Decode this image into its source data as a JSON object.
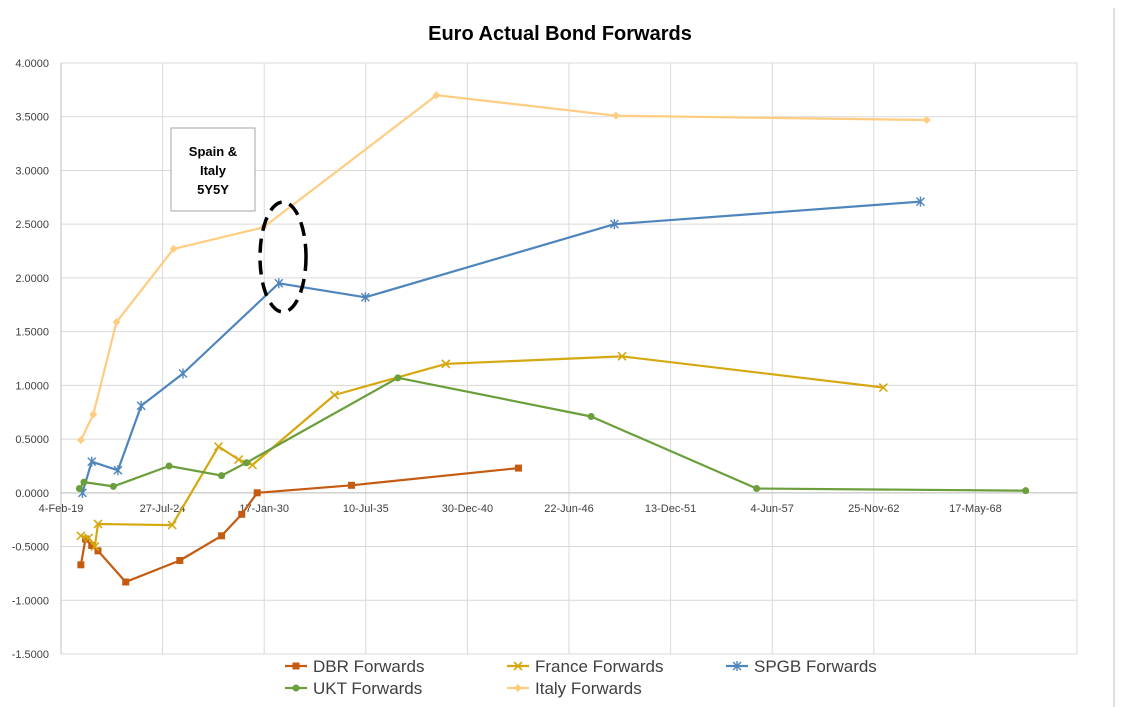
{
  "chart_data": {
    "type": "line",
    "title": "Euro Actual Bond Forwards",
    "xlabel": "",
    "ylabel": "",
    "x_tick_labels": [
      "4-Feb-19",
      "27-Jul-24",
      "17-Jan-30",
      "10-Jul-35",
      "30-Dec-40",
      "22-Jun-46",
      "13-Dec-51",
      "4-Jun-57",
      "25-Nov-62",
      "17-May-68"
    ],
    "x_ticks": [
      "2019-02-04",
      "2024-07-27",
      "2030-01-17",
      "2035-07-10",
      "2040-12-30",
      "2046-06-22",
      "2051-12-13",
      "2057-06-04",
      "2062-11-25",
      "2068-05-17"
    ],
    "xlim": [
      "2019-02-04",
      "2073-11-07"
    ],
    "ylim": [
      -1.5,
      4.0
    ],
    "y_ticks": [
      -1.5,
      -1.0,
      -0.5,
      0.0,
      0.5,
      1.0,
      1.5,
      2.0,
      2.5,
      3.0,
      3.5,
      4.0
    ],
    "y_tick_labels": [
      "-1.5000",
      "-1.0000",
      "-0.5000",
      "0.0000",
      "0.5000",
      "1.0000",
      "1.5000",
      "2.0000",
      "2.5000",
      "3.0000",
      "3.5000",
      "4.0000"
    ],
    "grid": true,
    "legend_position": "bottom",
    "series": [
      {
        "name": "DBR Forwards",
        "color": "#C55A11",
        "marker": "square",
        "x": [
          "2020-03-01",
          "2020-06-01",
          "2020-10-01",
          "2021-02-01",
          "2022-08-01",
          "2025-07-01",
          "2027-10-01",
          "2028-11-01",
          "2029-09-01",
          "2034-10-01",
          "2043-10-01"
        ],
        "y": [
          -0.67,
          -0.43,
          -0.49,
          -0.54,
          -0.83,
          -0.63,
          -0.4,
          -0.2,
          0.0,
          0.07,
          0.23
        ]
      },
      {
        "name": "France Forwards",
        "color": "#D6A80F",
        "marker": "x",
        "x": [
          "2020-03-01",
          "2020-08-01",
          "2020-12-01",
          "2021-02-01",
          "2025-02-01",
          "2027-08-01",
          "2028-09-01",
          "2029-06-01",
          "2033-11-01",
          "2039-11-01",
          "2049-05-01",
          "2063-06-01"
        ],
        "y": [
          -0.4,
          -0.42,
          -0.5,
          -0.29,
          -0.3,
          0.43,
          0.31,
          0.26,
          0.91,
          1.2,
          1.27,
          0.98
        ]
      },
      {
        "name": "SPGB Forwards",
        "color": "#4F85BD",
        "marker": "asterisk",
        "x": [
          "2020-04-01",
          "2020-10-01",
          "2022-03-01",
          "2023-06-01",
          "2025-09-01",
          "2030-11-01",
          "2035-07-01",
          "2048-12-01",
          "2065-06-01"
        ],
        "y": [
          0.0,
          0.29,
          0.21,
          0.81,
          1.11,
          1.95,
          1.82,
          2.5,
          2.71
        ]
      },
      {
        "name": "UKT Forwards",
        "color": "#6A9F3B",
        "marker": "circle",
        "x": [
          "2020-02-01",
          "2020-05-01",
          "2021-12-01",
          "2024-12-01",
          "2027-10-01",
          "2029-02-01",
          "2037-04-01",
          "2047-09-01",
          "2056-08-01",
          "2071-02-01"
        ],
        "y": [
          0.04,
          0.1,
          0.06,
          0.25,
          0.16,
          0.28,
          1.07,
          0.71,
          0.04,
          0.02
        ]
      },
      {
        "name": "Italy Forwards",
        "color": "#FFCC80",
        "marker": "diamond",
        "x": [
          "2020-03-01",
          "2020-11-01",
          "2022-02-01",
          "2025-03-01",
          "2030-01-01",
          "2039-05-01",
          "2049-01-01",
          "2065-10-01"
        ],
        "y": [
          0.49,
          0.73,
          1.59,
          2.27,
          2.47,
          3.7,
          3.51,
          3.47
        ]
      }
    ],
    "annotation": {
      "lines": [
        "Spain &",
        "Italy",
        "5Y5Y"
      ]
    }
  }
}
